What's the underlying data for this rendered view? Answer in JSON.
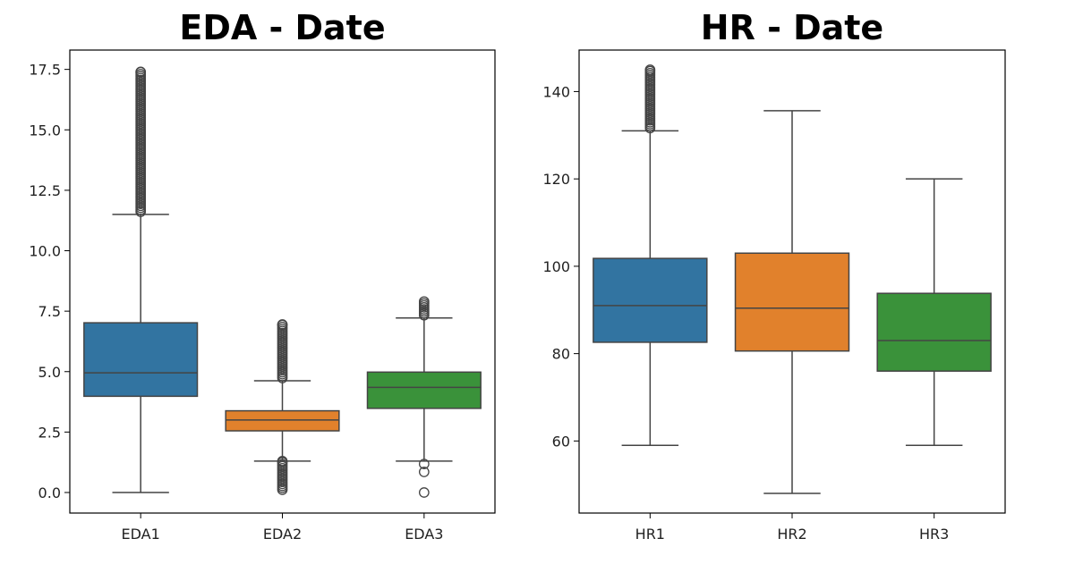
{
  "chart_data": [
    {
      "type": "box",
      "title": "EDA - Date",
      "xlabel": "",
      "ylabel": "",
      "ylim": [
        -0.85,
        18.3
      ],
      "yticks": [
        0.0,
        2.5,
        5.0,
        7.5,
        10.0,
        12.5,
        15.0,
        17.5
      ],
      "ytick_labels": [
        "0.0",
        "2.5",
        "5.0",
        "7.5",
        "10.0",
        "12.5",
        "15.0",
        "17.5"
      ],
      "categories": [
        "EDA1",
        "EDA2",
        "EDA3"
      ],
      "colors": [
        "#3274a1",
        "#e1812c",
        "#3a923a"
      ],
      "boxes": [
        {
          "label": "EDA1",
          "whislo": 0.0,
          "q1": 3.98,
          "med": 4.95,
          "q3": 7.02,
          "whishi": 11.5,
          "fliers_high_range": [
            11.5,
            17.4
          ],
          "fliers_low": []
        },
        {
          "label": "EDA2",
          "whislo": 1.3,
          "q1": 2.55,
          "med": 3.0,
          "q3": 3.38,
          "whishi": 4.62,
          "fliers_high_range": [
            4.62,
            6.95
          ],
          "fliers_low_range": [
            0.0,
            1.3
          ]
        },
        {
          "label": "EDA3",
          "whislo": 1.3,
          "q1": 3.48,
          "med": 4.35,
          "q3": 4.98,
          "whishi": 7.22,
          "fliers_high_range": [
            7.22,
            7.9
          ],
          "fliers_low": [
            1.18,
            0.85,
            0.0
          ]
        }
      ]
    },
    {
      "type": "box",
      "title": "HR - Date",
      "xlabel": "",
      "ylabel": "",
      "ylim": [
        43.5,
        149.5
      ],
      "yticks": [
        60,
        80,
        100,
        120,
        140
      ],
      "ytick_labels": [
        "60",
        "80",
        "100",
        "120",
        "140"
      ],
      "categories": [
        "HR1",
        "HR2",
        "HR3"
      ],
      "colors": [
        "#3274a1",
        "#e1812c",
        "#3a923a"
      ],
      "boxes": [
        {
          "label": "HR1",
          "whislo": 59,
          "q1": 82.6,
          "med": 91,
          "q3": 101.8,
          "whishi": 131,
          "fliers_high_range": [
            131,
            145
          ],
          "fliers_low": []
        },
        {
          "label": "HR2",
          "whislo": 48,
          "q1": 80.6,
          "med": 90.4,
          "q3": 103,
          "whishi": 135.6,
          "fliers_low": []
        },
        {
          "label": "HR3",
          "whislo": 59,
          "q1": 76,
          "med": 83,
          "q3": 93.8,
          "whishi": 120,
          "fliers_low": []
        }
      ]
    }
  ]
}
